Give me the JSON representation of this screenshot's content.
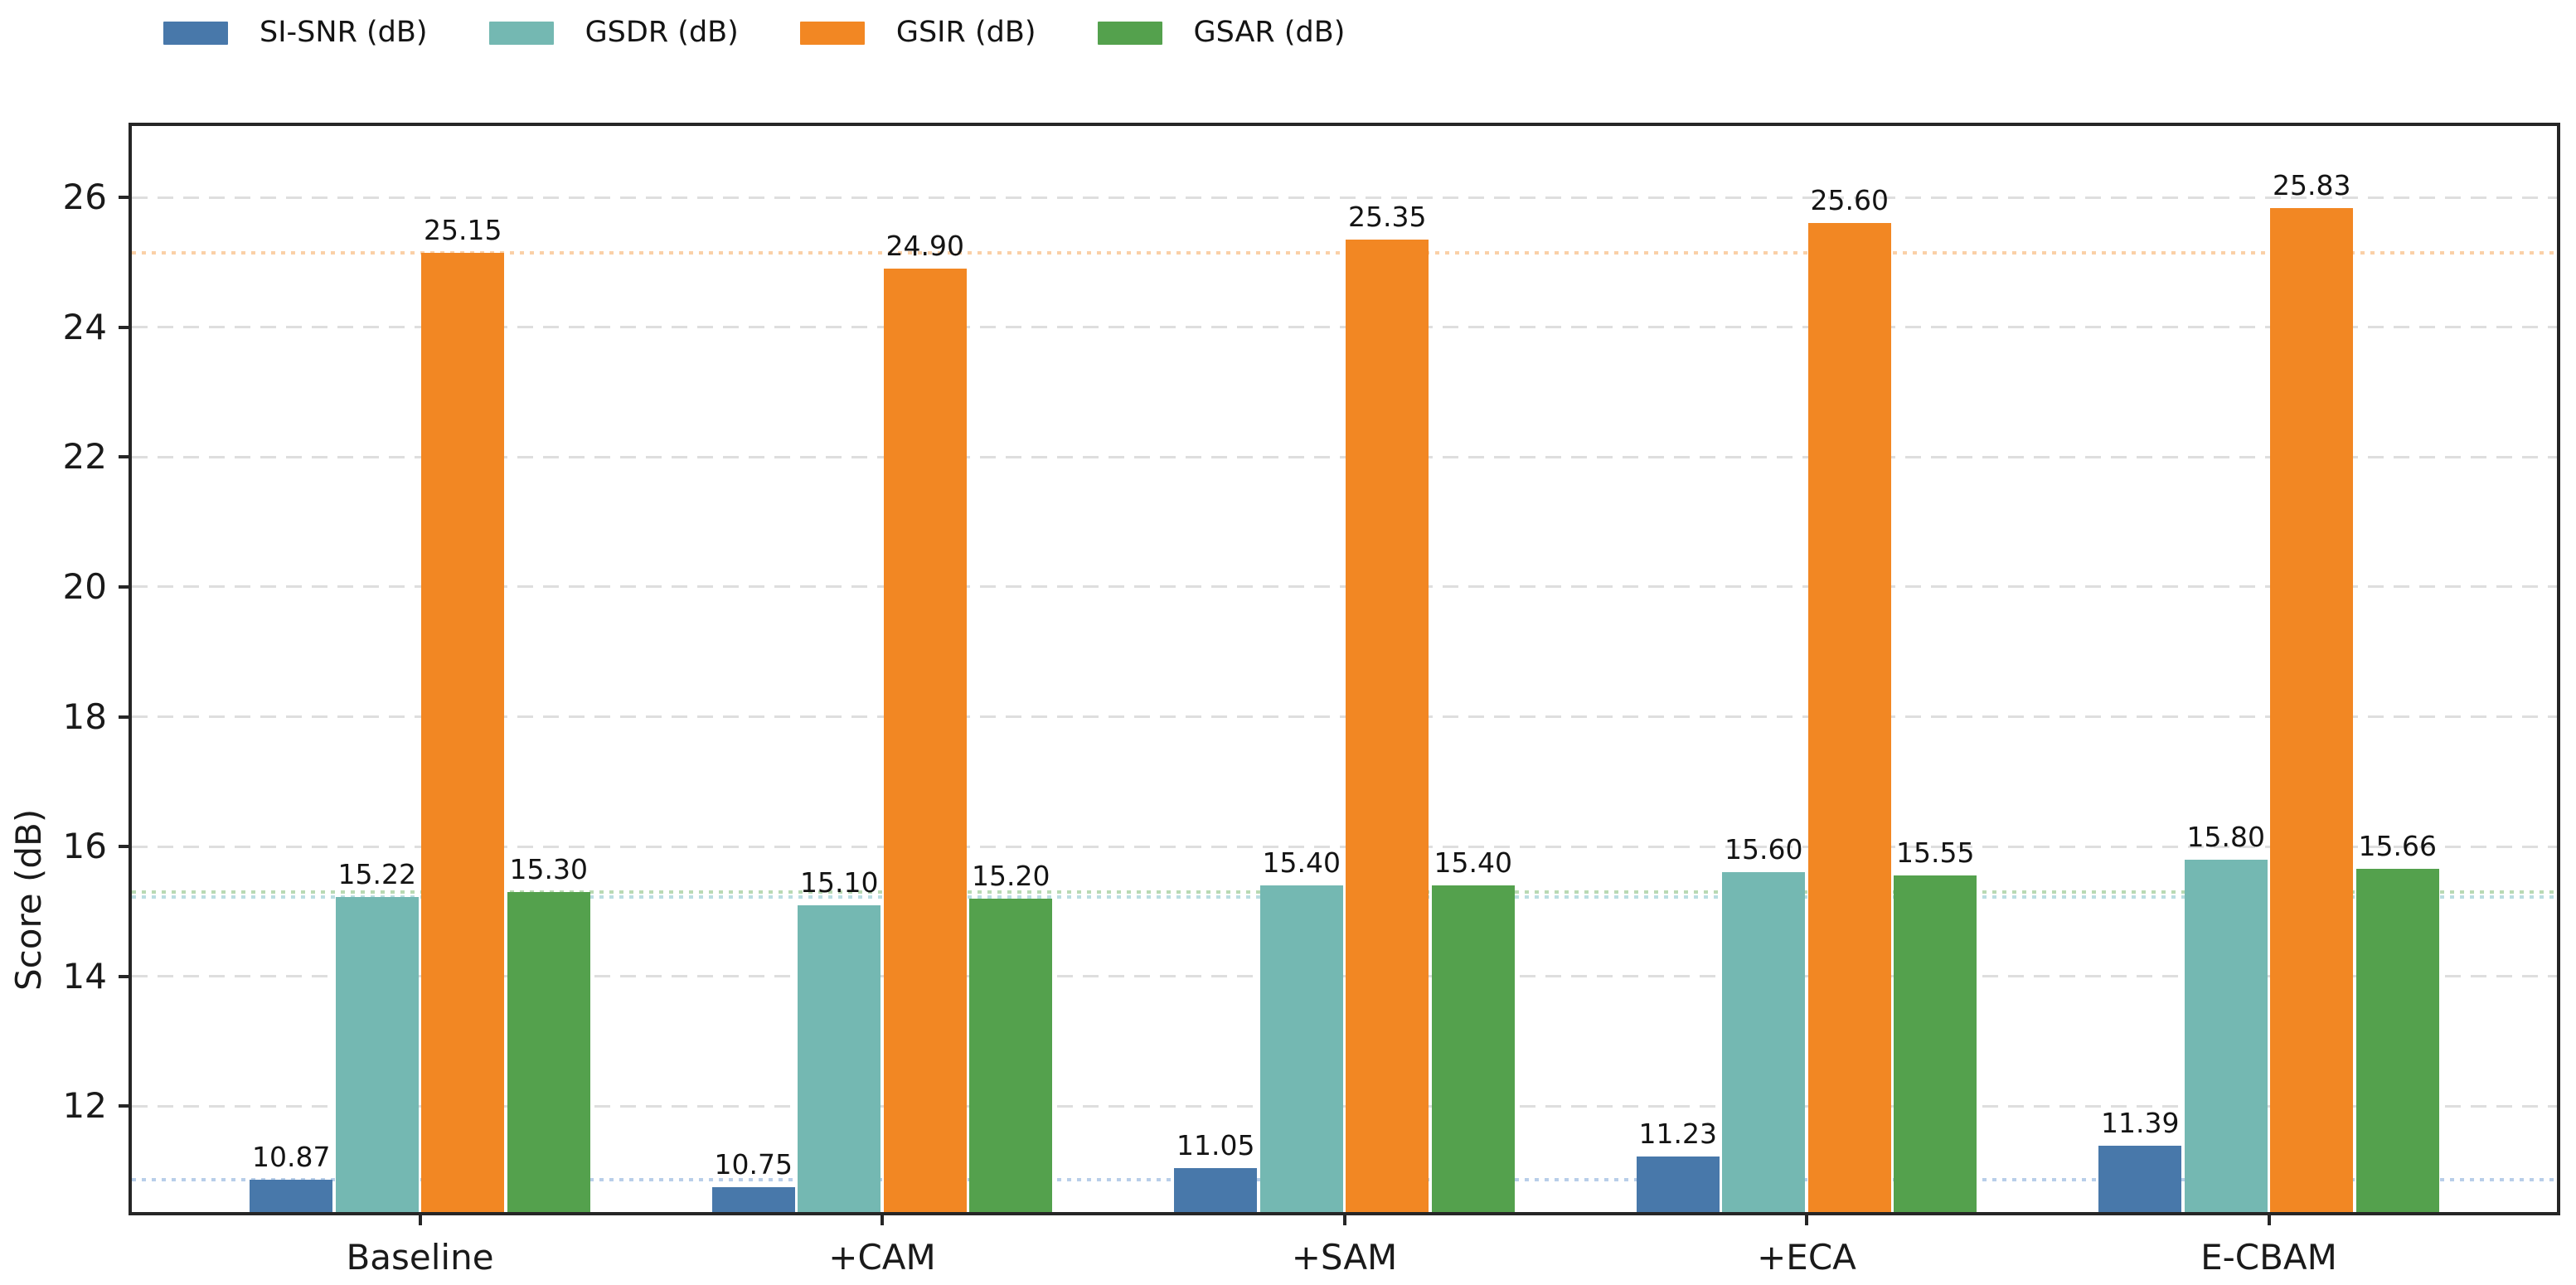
{
  "chart_data": {
    "type": "bar",
    "title": "",
    "categories": [
      "Baseline",
      "+CAM",
      "+SAM",
      "+ECA",
      "E-CBAM"
    ],
    "series": [
      {
        "name": "SI-SNR (dB)",
        "color": "#4878AA",
        "values": [
          10.87,
          10.75,
          11.05,
          11.23,
          11.39
        ]
      },
      {
        "name": "GSDR (dB)",
        "color": "#74B8B2",
        "values": [
          15.22,
          15.1,
          15.4,
          15.6,
          15.8
        ]
      },
      {
        "name": "GSIR (dB)",
        "color": "#F28723",
        "values": [
          25.15,
          24.9,
          25.35,
          25.6,
          25.83
        ]
      },
      {
        "name": "GSAR (dB)",
        "color": "#54A14D",
        "values": [
          15.3,
          15.2,
          15.4,
          15.55,
          15.66
        ]
      }
    ],
    "bar_value_labels": [
      [
        "10.87",
        "10.75",
        "11.05",
        "11.23",
        "11.39"
      ],
      [
        "15.22",
        "15.10",
        "15.40",
        "15.60",
        "15.80"
      ],
      [
        "25.15",
        "24.90",
        "25.35",
        "25.60",
        "25.83"
      ],
      [
        "15.30",
        "15.20",
        "15.40",
        "15.55",
        "15.66"
      ]
    ],
    "xlabel": "",
    "ylabel": "Score (dB)",
    "ylim": [
      10.37,
      27.1
    ],
    "yticks": [
      12,
      14,
      16,
      18,
      20,
      22,
      24,
      26
    ],
    "grid": "horizontal-dashed",
    "legend_position": "top-left-outside",
    "reference_lines": [
      {
        "value": 25.15,
        "style": "dotted",
        "color": "rgba(244,150,60,0.45)"
      },
      {
        "value": 15.3,
        "style": "dotted",
        "color": "rgba(115,180,105,0.50)"
      },
      {
        "value": 15.22,
        "style": "dotted",
        "color": "rgba(140,198,205,0.60)"
      },
      {
        "value": 10.87,
        "style": "dotted",
        "color": "rgba(125,165,215,0.55)"
      }
    ]
  },
  "legend": {
    "items": [
      {
        "label": "SI-SNR (dB)",
        "color": "#4878AA"
      },
      {
        "label": "GSDR (dB)",
        "color": "#74B8B2"
      },
      {
        "label": "GSIR (dB)",
        "color": "#F28723"
      },
      {
        "label": "GSAR (dB)",
        "color": "#54A14D"
      }
    ]
  }
}
